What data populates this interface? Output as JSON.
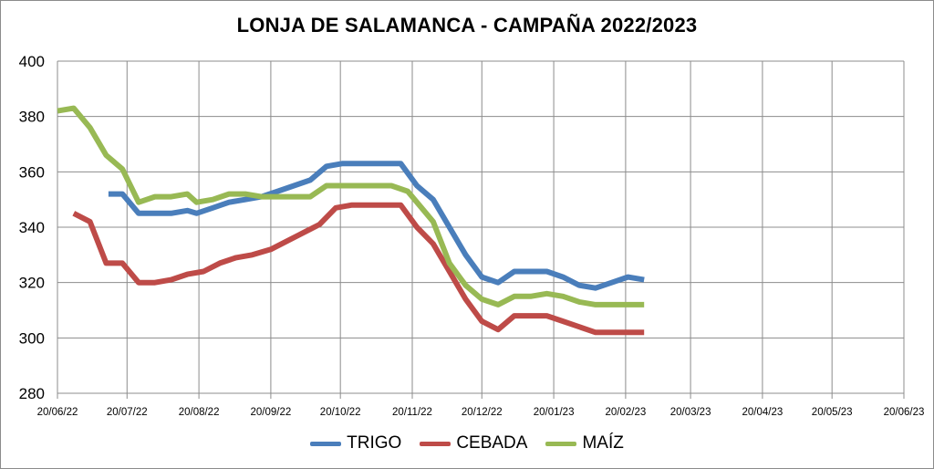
{
  "chart_data": {
    "type": "line",
    "title": "LONJA DE SALAMANCA - CAMPAÑA 2022/2023",
    "xlabel": "",
    "ylabel": "",
    "ylim": [
      280,
      400
    ],
    "yticks": [
      280,
      300,
      320,
      340,
      360,
      380,
      400
    ],
    "xlim": [
      "2022-06-20",
      "2023-06-20"
    ],
    "xtick_labels": [
      "20/06/22",
      "20/07/22",
      "20/08/22",
      "20/09/22",
      "20/10/22",
      "20/11/22",
      "20/12/22",
      "20/01/23",
      "20/02/23",
      "20/03/23",
      "20/04/23",
      "20/05/23",
      "20/06/23"
    ],
    "grid": "vertical and horizontal",
    "legend_position": "bottom",
    "series": [
      {
        "name": "TRIGO",
        "color": "#4a7ebb",
        "points": [
          [
            "2022-07-12",
            352
          ],
          [
            "2022-07-18",
            352
          ],
          [
            "2022-07-25",
            345
          ],
          [
            "2022-08-01",
            345
          ],
          [
            "2022-08-08",
            345
          ],
          [
            "2022-08-15",
            346
          ],
          [
            "2022-08-19",
            345
          ],
          [
            "2022-08-26",
            347
          ],
          [
            "2022-09-02",
            349
          ],
          [
            "2022-09-09",
            350
          ],
          [
            "2022-09-16",
            351
          ],
          [
            "2022-09-23",
            353
          ],
          [
            "2022-09-30",
            355
          ],
          [
            "2022-10-07",
            357
          ],
          [
            "2022-10-14",
            362
          ],
          [
            "2022-10-21",
            363
          ],
          [
            "2022-10-28",
            363
          ],
          [
            "2022-11-04",
            363
          ],
          [
            "2022-11-11",
            363
          ],
          [
            "2022-11-15",
            363
          ],
          [
            "2022-11-22",
            355
          ],
          [
            "2022-11-29",
            350
          ],
          [
            "2022-12-06",
            340
          ],
          [
            "2022-12-13",
            330
          ],
          [
            "2022-12-20",
            322
          ],
          [
            "2022-12-27",
            320
          ],
          [
            "2023-01-03",
            324
          ],
          [
            "2023-01-10",
            324
          ],
          [
            "2023-01-17",
            324
          ],
          [
            "2023-01-24",
            322
          ],
          [
            "2023-01-31",
            319
          ],
          [
            "2023-02-07",
            318
          ],
          [
            "2023-02-14",
            320
          ],
          [
            "2023-02-21",
            322
          ],
          [
            "2023-02-28",
            321
          ]
        ]
      },
      {
        "name": "CEBADA",
        "color": "#be4b48",
        "points": [
          [
            "2022-06-27",
            345
          ],
          [
            "2022-07-04",
            342
          ],
          [
            "2022-07-11",
            327
          ],
          [
            "2022-07-18",
            327
          ],
          [
            "2022-07-25",
            320
          ],
          [
            "2022-08-01",
            320
          ],
          [
            "2022-08-08",
            321
          ],
          [
            "2022-08-15",
            323
          ],
          [
            "2022-08-22",
            324
          ],
          [
            "2022-08-29",
            327
          ],
          [
            "2022-09-05",
            329
          ],
          [
            "2022-09-12",
            330
          ],
          [
            "2022-09-20",
            332
          ],
          [
            "2022-09-27",
            335
          ],
          [
            "2022-10-04",
            338
          ],
          [
            "2022-10-11",
            341
          ],
          [
            "2022-10-18",
            347
          ],
          [
            "2022-10-25",
            348
          ],
          [
            "2022-11-01",
            348
          ],
          [
            "2022-11-08",
            348
          ],
          [
            "2022-11-15",
            348
          ],
          [
            "2022-11-22",
            340
          ],
          [
            "2022-11-29",
            334
          ],
          [
            "2022-12-06",
            324
          ],
          [
            "2022-12-13",
            314
          ],
          [
            "2022-12-20",
            306
          ],
          [
            "2022-12-27",
            303
          ],
          [
            "2023-01-03",
            308
          ],
          [
            "2023-01-10",
            308
          ],
          [
            "2023-01-17",
            308
          ],
          [
            "2023-01-24",
            306
          ],
          [
            "2023-01-31",
            304
          ],
          [
            "2023-02-07",
            302
          ],
          [
            "2023-02-14",
            302
          ],
          [
            "2023-02-21",
            302
          ],
          [
            "2023-02-28",
            302
          ]
        ]
      },
      {
        "name": "MAÍZ",
        "color": "#98b954",
        "points": [
          [
            "2022-06-20",
            382
          ],
          [
            "2022-06-27",
            383
          ],
          [
            "2022-07-04",
            376
          ],
          [
            "2022-07-11",
            366
          ],
          [
            "2022-07-18",
            361
          ],
          [
            "2022-07-25",
            349
          ],
          [
            "2022-08-01",
            351
          ],
          [
            "2022-08-08",
            351
          ],
          [
            "2022-08-15",
            352
          ],
          [
            "2022-08-19",
            349
          ],
          [
            "2022-08-26",
            350
          ],
          [
            "2022-09-02",
            352
          ],
          [
            "2022-09-09",
            352
          ],
          [
            "2022-09-16",
            351
          ],
          [
            "2022-09-23",
            351
          ],
          [
            "2022-09-30",
            351
          ],
          [
            "2022-10-07",
            351
          ],
          [
            "2022-10-14",
            355
          ],
          [
            "2022-10-21",
            355
          ],
          [
            "2022-10-28",
            355
          ],
          [
            "2022-11-04",
            355
          ],
          [
            "2022-11-11",
            355
          ],
          [
            "2022-11-18",
            353
          ],
          [
            "2022-11-22",
            349
          ],
          [
            "2022-11-29",
            342
          ],
          [
            "2022-12-06",
            327
          ],
          [
            "2022-12-13",
            319
          ],
          [
            "2022-12-20",
            314
          ],
          [
            "2022-12-27",
            312
          ],
          [
            "2023-01-03",
            315
          ],
          [
            "2023-01-10",
            315
          ],
          [
            "2023-01-17",
            316
          ],
          [
            "2023-01-24",
            315
          ],
          [
            "2023-01-31",
            313
          ],
          [
            "2023-02-07",
            312
          ],
          [
            "2023-02-14",
            312
          ],
          [
            "2023-02-21",
            312
          ],
          [
            "2023-02-28",
            312
          ]
        ]
      }
    ]
  }
}
